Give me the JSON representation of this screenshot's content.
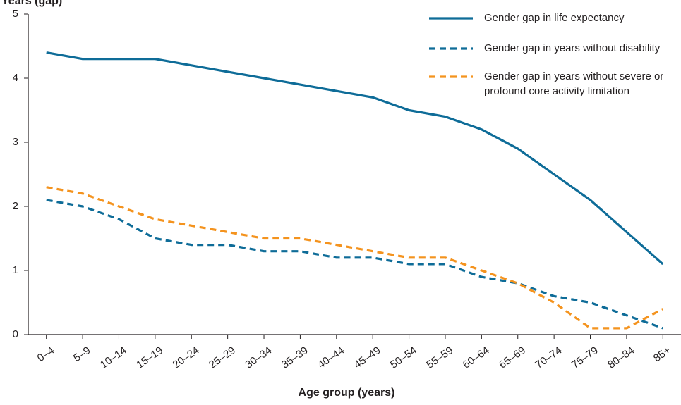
{
  "chart_data": {
    "type": "line",
    "title": "",
    "ylabel": "Years (gap)",
    "xlabel": "Age group (years)",
    "ylim": [
      0,
      5
    ],
    "yticks": [
      "0",
      "1",
      "2",
      "3",
      "4",
      "5"
    ],
    "categories": [
      "0–4",
      "5–9",
      "10–14",
      "15–19",
      "20–24",
      "25–29",
      "30–34",
      "35–39",
      "40–44",
      "45–49",
      "50–54",
      "55–59",
      "60–64",
      "65–69",
      "70–74",
      "75–79",
      "80–84",
      "85+"
    ],
    "legend_position": "top-right",
    "series": [
      {
        "name": "Gender gap in life expectancy",
        "color": "#0e6c98",
        "style": "solid",
        "values": [
          4.4,
          4.3,
          4.3,
          4.3,
          4.2,
          4.1,
          4.0,
          3.9,
          3.8,
          3.7,
          3.5,
          3.4,
          3.2,
          2.9,
          2.5,
          2.1,
          1.6,
          1.1
        ]
      },
      {
        "name": "Gender gap in years without disability",
        "color": "#0e6c98",
        "style": "dashed",
        "values": [
          2.1,
          2.0,
          1.8,
          1.5,
          1.4,
          1.4,
          1.3,
          1.3,
          1.2,
          1.2,
          1.1,
          1.1,
          0.9,
          0.8,
          0.6,
          0.5,
          0.3,
          0.1
        ]
      },
      {
        "name": "Gender gap in years without severe or profound core activity limitation",
        "name_lines": [
          "Gender gap in years without severe or",
          "profound core activity limitation"
        ],
        "color": "#f4931e",
        "style": "dashed",
        "values": [
          2.3,
          2.2,
          2.0,
          1.8,
          1.7,
          1.6,
          1.5,
          1.5,
          1.4,
          1.3,
          1.2,
          1.2,
          1.0,
          0.8,
          0.5,
          0.1,
          0.1,
          0.4
        ]
      }
    ]
  }
}
